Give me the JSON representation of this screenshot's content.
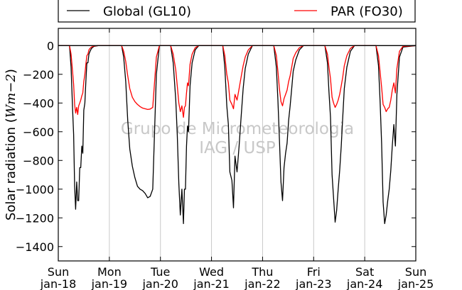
{
  "chart_data": {
    "type": "line",
    "title": "",
    "ylabel": "Solar radiation (Wm−2)",
    "ylabel_prefix": "Solar radiation (",
    "ylabel_unit_W": "W",
    "ylabel_unit_m": "m",
    "ylabel_unit_exp": "−2",
    "ylabel_suffix": ")",
    "ylim": [
      -1500,
      120
    ],
    "yticks": [
      0,
      -200,
      -400,
      -600,
      -800,
      -1000,
      -1200,
      -1400
    ],
    "xlim": [
      0,
      7
    ],
    "xticks": [
      {
        "x": 0,
        "day": "Sun",
        "date": "jan-18"
      },
      {
        "x": 1,
        "day": "Mon",
        "date": "jan-19"
      },
      {
        "x": 2,
        "day": "Tue",
        "date": "jan-20"
      },
      {
        "x": 3,
        "day": "Wed",
        "date": "jan-21"
      },
      {
        "x": 4,
        "day": "Thu",
        "date": "jan-22"
      },
      {
        "x": 5,
        "day": "Fri",
        "date": "jan-23"
      },
      {
        "x": 6,
        "day": "Sat",
        "date": "jan-24"
      },
      {
        "x": 7,
        "day": "Sun",
        "date": "jan-25"
      }
    ],
    "grid": "vertical",
    "legend_position": "top-outside",
    "watermark": [
      "Grupo de Micrometeorologia",
      "IAG / USP"
    ],
    "colors": {
      "global": "#000000",
      "par": "#ff0000",
      "grid": "#c8c8c8",
      "watermark": "#c8c8c8"
    },
    "series": [
      {
        "name": "Global (GL10)",
        "color": "#000000",
        "x": [
          0,
          0.22,
          0.25,
          0.28,
          0.3,
          0.32,
          0.34,
          0.36,
          0.38,
          0.4,
          0.42,
          0.44,
          0.46,
          0.48,
          0.5,
          0.52,
          0.54,
          0.56,
          0.58,
          0.6,
          0.62,
          0.65,
          0.7,
          0.78,
          1.24,
          1.28,
          1.32,
          1.36,
          1.4,
          1.45,
          1.5,
          1.55,
          1.6,
          1.65,
          1.7,
          1.75,
          1.8,
          1.85,
          1.92,
          1.98,
          2.2,
          2.25,
          2.3,
          2.33,
          2.36,
          2.39,
          2.42,
          2.45,
          2.47,
          2.49,
          2.51,
          2.53,
          2.55,
          2.58,
          2.62,
          2.68,
          2.75,
          3.22,
          3.26,
          3.3,
          3.33,
          3.36,
          3.4,
          3.43,
          3.46,
          3.5,
          3.54,
          3.58,
          3.62,
          3.66,
          3.72,
          3.8,
          4.22,
          4.27,
          4.3,
          4.33,
          4.36,
          4.39,
          4.42,
          4.45,
          4.48,
          4.51,
          4.54,
          4.57,
          4.6,
          4.65,
          4.72,
          4.8,
          5.22,
          5.27,
          5.3,
          5.33,
          5.36,
          5.39,
          5.42,
          5.45,
          5.48,
          5.51,
          5.54,
          5.57,
          5.6,
          5.65,
          5.72,
          5.8,
          6.22,
          6.27,
          6.3,
          6.33,
          6.36,
          6.39,
          6.42,
          6.45,
          6.48,
          6.51,
          6.54,
          6.57,
          6.6,
          6.63,
          6.68,
          6.75,
          7
        ],
        "y": [
          0,
          0,
          -150,
          -440,
          -620,
          -980,
          -1140,
          -950,
          -1080,
          -1080,
          -850,
          -850,
          -700,
          -750,
          -450,
          -400,
          -250,
          -120,
          -120,
          -60,
          -40,
          -20,
          -5,
          0,
          0,
          -80,
          -250,
          -520,
          -720,
          -840,
          -920,
          -980,
          -1000,
          -1010,
          -1030,
          -1060,
          -1050,
          -1000,
          -200,
          0,
          0,
          -120,
          -380,
          -620,
          -960,
          -1180,
          -1000,
          -1240,
          -1000,
          -1000,
          -700,
          -560,
          -600,
          -280,
          -120,
          -30,
          0,
          0,
          -150,
          -420,
          -550,
          -880,
          -940,
          -1130,
          -770,
          -880,
          -700,
          -500,
          -300,
          -160,
          -60,
          0,
          0,
          -150,
          -380,
          -650,
          -950,
          -1080,
          -850,
          -750,
          -680,
          -520,
          -420,
          -300,
          -180,
          -100,
          -30,
          0,
          0,
          -120,
          -320,
          -500,
          -900,
          -1060,
          -1230,
          -1150,
          -1000,
          -870,
          -700,
          -500,
          -300,
          -150,
          -40,
          0,
          0,
          -140,
          -380,
          -680,
          -1090,
          -1240,
          -1180,
          -1080,
          -1000,
          -870,
          -700,
          -550,
          -700,
          -340,
          -80,
          -10,
          0
        ]
      },
      {
        "name": "PAR (FO30)",
        "color": "#ff0000",
        "x": [
          0,
          0.22,
          0.25,
          0.28,
          0.3,
          0.32,
          0.34,
          0.36,
          0.38,
          0.4,
          0.42,
          0.44,
          0.46,
          0.48,
          0.5,
          0.52,
          0.54,
          0.56,
          0.58,
          0.6,
          0.62,
          0.65,
          0.7,
          0.78,
          1.24,
          1.28,
          1.32,
          1.36,
          1.4,
          1.45,
          1.5,
          1.55,
          1.6,
          1.65,
          1.7,
          1.75,
          1.8,
          1.85,
          1.92,
          1.98,
          2.2,
          2.25,
          2.3,
          2.33,
          2.36,
          2.39,
          2.42,
          2.45,
          2.47,
          2.49,
          2.51,
          2.53,
          2.55,
          2.58,
          2.62,
          2.68,
          2.75,
          3.22,
          3.26,
          3.3,
          3.33,
          3.36,
          3.4,
          3.43,
          3.46,
          3.5,
          3.54,
          3.58,
          3.62,
          3.66,
          3.72,
          3.8,
          4.22,
          4.27,
          4.3,
          4.33,
          4.36,
          4.39,
          4.42,
          4.45,
          4.48,
          4.51,
          4.54,
          4.57,
          4.6,
          4.65,
          4.72,
          4.8,
          5.22,
          5.27,
          5.3,
          5.33,
          5.36,
          5.39,
          5.42,
          5.45,
          5.48,
          5.51,
          5.54,
          5.57,
          5.6,
          5.65,
          5.72,
          5.8,
          6.22,
          6.27,
          6.3,
          6.33,
          6.36,
          6.39,
          6.42,
          6.45,
          6.48,
          6.51,
          6.54,
          6.57,
          6.6,
          6.63,
          6.68,
          6.75,
          7
        ],
        "y": [
          0,
          0,
          -60,
          -180,
          -270,
          -410,
          -470,
          -430,
          -480,
          -420,
          -400,
          -380,
          -350,
          -330,
          -250,
          -200,
          -130,
          -70,
          -60,
          -30,
          -20,
          -10,
          -3,
          0,
          0,
          -40,
          -110,
          -210,
          -300,
          -360,
          -390,
          -410,
          -425,
          -435,
          -440,
          -445,
          -442,
          -430,
          -80,
          0,
          0,
          -60,
          -170,
          -280,
          -400,
          -460,
          -420,
          -500,
          -430,
          -420,
          -330,
          -260,
          -280,
          -130,
          -60,
          -15,
          0,
          0,
          -70,
          -200,
          -260,
          -380,
          -410,
          -440,
          -340,
          -380,
          -300,
          -220,
          -140,
          -80,
          -30,
          0,
          0,
          -70,
          -180,
          -300,
          -390,
          -420,
          -370,
          -340,
          -310,
          -250,
          -210,
          -150,
          -90,
          -50,
          -15,
          0,
          0,
          -60,
          -150,
          -230,
          -360,
          -400,
          -430,
          -410,
          -380,
          -340,
          -280,
          -220,
          -140,
          -70,
          -20,
          0,
          0,
          -70,
          -180,
          -290,
          -410,
          -430,
          -460,
          -440,
          -430,
          -380,
          -310,
          -260,
          -330,
          -160,
          -40,
          -5,
          0
        ]
      }
    ]
  }
}
